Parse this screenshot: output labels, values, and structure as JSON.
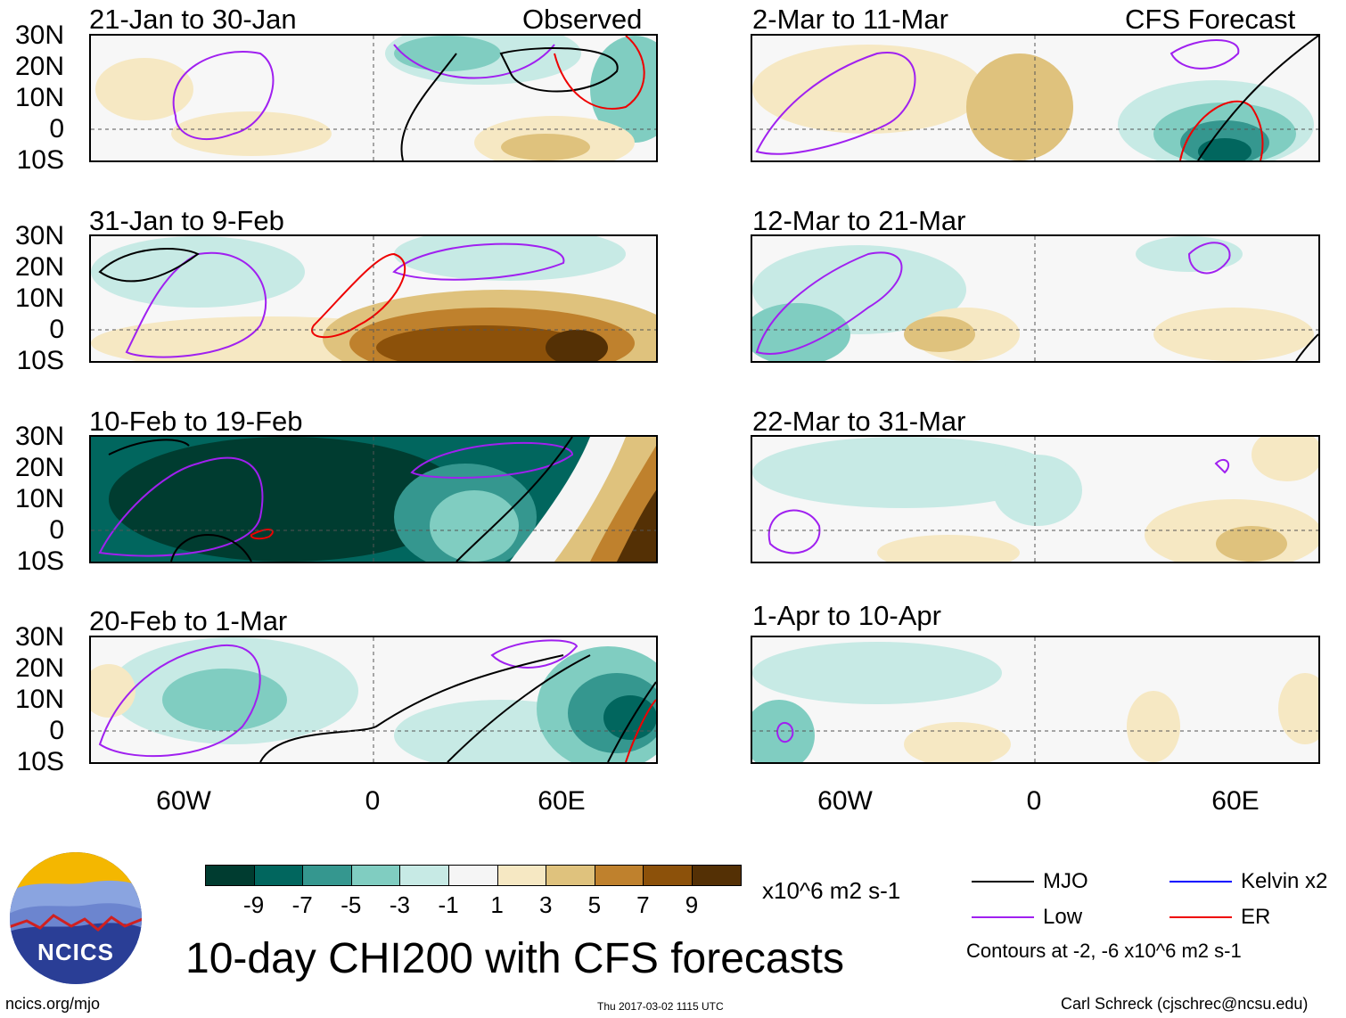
{
  "panels": [
    {
      "title": "21-Jan to 30-Jan",
      "tag": "Observed"
    },
    {
      "title": "31-Jan to 9-Feb",
      "tag": ""
    },
    {
      "title": "10-Feb to 19-Feb",
      "tag": ""
    },
    {
      "title": "20-Feb to 1-Mar",
      "tag": ""
    },
    {
      "title": "2-Mar to 11-Mar",
      "tag": "CFS Forecast"
    },
    {
      "title": "12-Mar to 21-Mar",
      "tag": ""
    },
    {
      "title": "22-Mar to 31-Mar",
      "tag": ""
    },
    {
      "title": "1-Apr to 10-Apr",
      "tag": ""
    }
  ],
  "lat_ticks": [
    "30N",
    "20N",
    "10N",
    "0",
    "10S"
  ],
  "lon_ticks": [
    "60W",
    "0",
    "60E"
  ],
  "colorbar": {
    "labels": [
      "-9",
      "-7",
      "-5",
      "-3",
      "-1",
      "1",
      "3",
      "5",
      "7",
      "9"
    ],
    "colors": [
      "#003c30",
      "#01665e",
      "#35978f",
      "#80cdc1",
      "#c7eae5",
      "#f5f5f5",
      "#f6e8c3",
      "#dfc27d",
      "#bf812d",
      "#8c510a",
      "#543005"
    ],
    "units": "x10^6 m2 s-1"
  },
  "legend": {
    "items": [
      {
        "label": "MJO",
        "color": "#000000"
      },
      {
        "label": "Kelvin x2",
        "color": "#0000ff"
      },
      {
        "label": "Low",
        "color": "#a020f0"
      },
      {
        "label": "ER",
        "color": "#ee0000"
      }
    ],
    "contours": "Contours at -2, -6 x10^6 m2 s-1"
  },
  "title": "10-day CHI200 with CFS forecasts",
  "logo_text": "NCICS",
  "footer": {
    "left": "ncics.org/mjo",
    "center": "Thu 2017-03-02 1115 UTC",
    "right": "Carl Schreck (cjschrec@ncsu.edu)"
  }
}
